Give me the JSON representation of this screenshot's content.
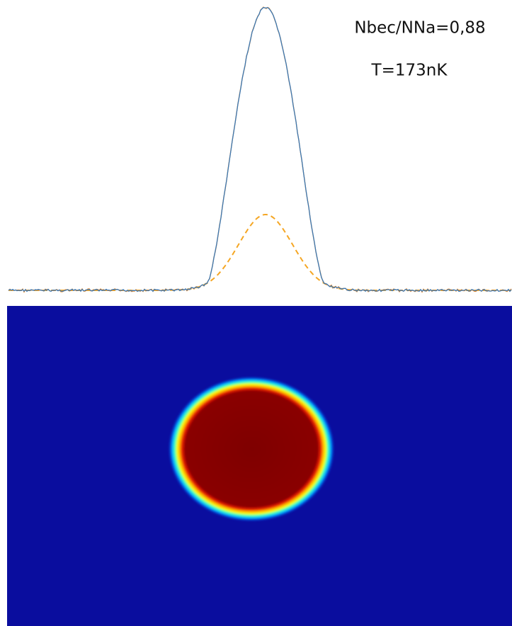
{
  "annotations": {
    "ratio": "Nbec/NNa=0,88",
    "temperature": "T=173nK"
  }
}
